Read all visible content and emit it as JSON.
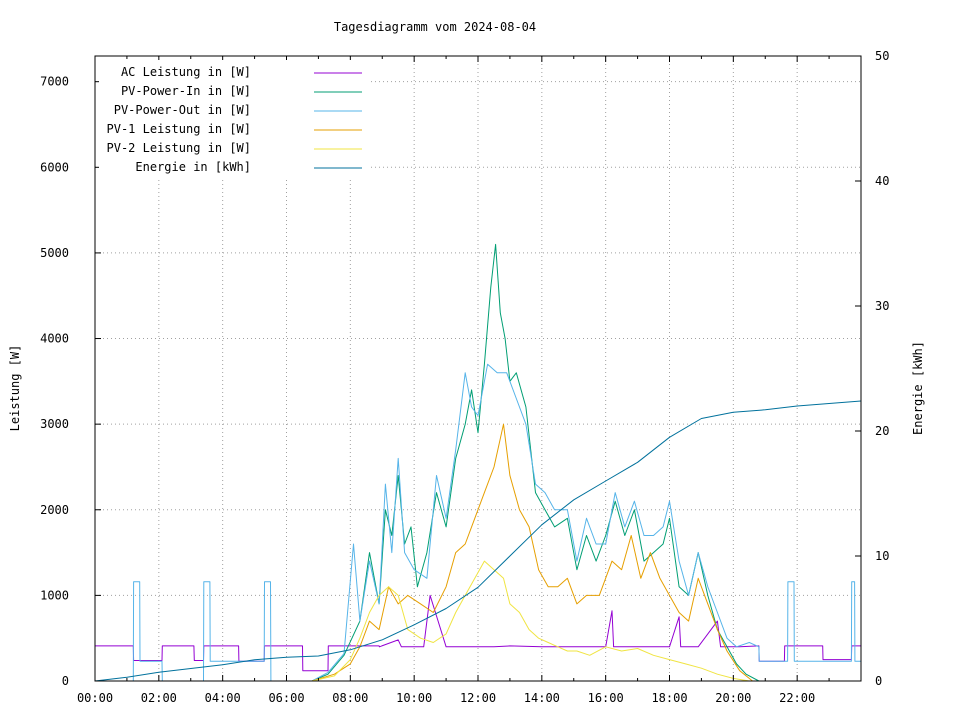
{
  "chart_data": {
    "type": "line",
    "title": "Tagesdiagramm vom 2024-08-04",
    "ylabel": "Leistung [W]",
    "y2label": "Energie [kWh]",
    "xlabel": "",
    "xlim": [
      0,
      24
    ],
    "ylim": [
      0,
      7300
    ],
    "y2lim": [
      0,
      50
    ],
    "x_ticks": [
      "00:00",
      "02:00",
      "04:00",
      "06:00",
      "08:00",
      "10:00",
      "12:00",
      "14:00",
      "16:00",
      "18:00",
      "20:00",
      "22:00"
    ],
    "y_ticks": [
      0,
      1000,
      2000,
      3000,
      4000,
      5000,
      6000,
      7000
    ],
    "y2_ticks": [
      0,
      10,
      20,
      30,
      40,
      50
    ],
    "grid": true,
    "legend_position": "top-left",
    "series": [
      {
        "name": "AC Leistung in [W]",
        "color": "#9400d3",
        "axis": "y",
        "x": [
          0,
          1.2,
          1.21,
          2.1,
          2.11,
          3.1,
          3.11,
          3.4,
          3.41,
          4.5,
          4.51,
          5.3,
          5.31,
          6.5,
          6.51,
          7.3,
          7.31,
          8.9,
          8.91,
          9.5,
          9.6,
          10.3,
          10.5,
          11.0,
          12.0,
          12.5,
          13.0,
          14.0,
          15.0,
          16.0,
          16.2,
          16.25,
          17.0,
          18.0,
          18.3,
          18.35,
          18.9,
          19.5,
          19.6,
          20.2,
          20.8,
          20.81,
          21.6,
          21.61,
          22.8,
          22.81,
          23.7,
          23.71,
          24
        ],
        "values": [
          410,
          410,
          240,
          240,
          410,
          410,
          240,
          240,
          410,
          410,
          230,
          230,
          410,
          410,
          120,
          120,
          410,
          410,
          400,
          480,
          400,
          400,
          1000,
          400,
          400,
          400,
          410,
          400,
          400,
          400,
          820,
          400,
          400,
          400,
          750,
          400,
          400,
          700,
          400,
          400,
          410,
          230,
          230,
          410,
          410,
          250,
          250,
          410,
          410
        ]
      },
      {
        "name": "PV-Power-In in [W]",
        "color": "#009e73",
        "axis": "y",
        "x": [
          6.8,
          7.3,
          7.8,
          8.3,
          8.6,
          8.9,
          9.1,
          9.3,
          9.5,
          9.7,
          9.9,
          10.1,
          10.4,
          10.7,
          11.0,
          11.3,
          11.6,
          11.8,
          12.0,
          12.2,
          12.4,
          12.55,
          12.7,
          12.85,
          13.0,
          13.2,
          13.5,
          13.8,
          14.1,
          14.4,
          14.8,
          15.1,
          15.4,
          15.7,
          16.0,
          16.3,
          16.6,
          16.9,
          17.2,
          17.5,
          17.8,
          18.0,
          18.3,
          18.6,
          18.9,
          19.2,
          19.5,
          19.8,
          20.1,
          20.4,
          20.8
        ],
        "values": [
          0,
          80,
          300,
          700,
          1500,
          900,
          2000,
          1700,
          2400,
          1600,
          1800,
          1100,
          1500,
          2200,
          1800,
          2600,
          3000,
          3400,
          2900,
          3700,
          4600,
          5100,
          4300,
          4000,
          3500,
          3600,
          3200,
          2200,
          2000,
          1800,
          1900,
          1300,
          1700,
          1400,
          1700,
          2100,
          1700,
          2000,
          1400,
          1500,
          1600,
          1900,
          1100,
          1000,
          1500,
          1000,
          600,
          400,
          200,
          80,
          0
        ]
      },
      {
        "name": "PV-Power-Out in [W]",
        "color": "#56b4e9",
        "axis": "y",
        "x": [
          0,
          1.2,
          1.21,
          1.4,
          1.41,
          2.1,
          2.11,
          3.4,
          3.41,
          3.6,
          3.61,
          5.3,
          5.31,
          5.5,
          5.51,
          6.8,
          7.3,
          7.8,
          8.1,
          8.3,
          8.6,
          8.9,
          9.1,
          9.3,
          9.5,
          9.7,
          10.0,
          10.4,
          10.7,
          11.0,
          11.3,
          11.6,
          11.8,
          12.0,
          12.3,
          12.6,
          12.9,
          13.2,
          13.5,
          13.8,
          14.1,
          14.4,
          14.8,
          15.1,
          15.4,
          15.7,
          16.0,
          16.3,
          16.6,
          16.9,
          17.2,
          17.5,
          17.8,
          18.0,
          18.3,
          18.6,
          18.9,
          19.2,
          19.5,
          19.8,
          20.1,
          20.5,
          20.8,
          20.81,
          21.7,
          21.71,
          21.9,
          21.91,
          22.8,
          22.81,
          23.7,
          23.71,
          23.8,
          23.81,
          24
        ],
        "values": [
          0,
          0,
          1160,
          1160,
          230,
          230,
          0,
          0,
          1160,
          1160,
          230,
          230,
          1160,
          1160,
          0,
          0,
          100,
          320,
          1600,
          700,
          1400,
          900,
          2300,
          1500,
          2600,
          1500,
          1300,
          1200,
          2400,
          1900,
          2700,
          3600,
          3200,
          3100,
          3700,
          3600,
          3600,
          3300,
          3000,
          2300,
          2200,
          2000,
          2000,
          1400,
          1900,
          1600,
          1600,
          2200,
          1800,
          2100,
          1700,
          1700,
          1800,
          2100,
          1400,
          1000,
          1500,
          1100,
          800,
          500,
          400,
          450,
          400,
          230,
          230,
          1160,
          1160,
          230,
          230,
          230,
          230,
          1160,
          1160,
          230,
          230
        ]
      },
      {
        "name": "PV-1 Leistung in [W]",
        "color": "#e69f00",
        "axis": "y",
        "x": [
          6.8,
          7.5,
          8.0,
          8.3,
          8.6,
          8.9,
          9.2,
          9.5,
          9.8,
          10.2,
          10.6,
          11.0,
          11.3,
          11.6,
          11.9,
          12.2,
          12.5,
          12.8,
          13.0,
          13.3,
          13.6,
          13.9,
          14.2,
          14.5,
          14.8,
          15.1,
          15.4,
          15.8,
          16.2,
          16.5,
          16.8,
          17.1,
          17.4,
          17.7,
          18.0,
          18.3,
          18.6,
          18.9,
          19.2,
          19.5,
          19.8,
          20.2,
          20.6
        ],
        "values": [
          0,
          80,
          200,
          400,
          700,
          600,
          1100,
          900,
          1000,
          900,
          800,
          1100,
          1500,
          1600,
          1900,
          2200,
          2500,
          3000,
          2400,
          2000,
          1800,
          1300,
          1100,
          1100,
          1200,
          900,
          1000,
          1000,
          1400,
          1300,
          1700,
          1200,
          1500,
          1200,
          1000,
          800,
          700,
          1200,
          900,
          600,
          350,
          120,
          0
        ]
      },
      {
        "name": "PV-2 Leistung in [W]",
        "color": "#f0e442",
        "axis": "y",
        "x": [
          6.8,
          7.5,
          8.0,
          8.3,
          8.6,
          8.9,
          9.2,
          9.5,
          9.8,
          10.2,
          10.6,
          11.0,
          11.3,
          11.6,
          11.9,
          12.2,
          12.5,
          12.8,
          13.0,
          13.3,
          13.6,
          13.9,
          14.2,
          14.5,
          14.8,
          15.1,
          15.5,
          16.0,
          16.5,
          17.0,
          17.5,
          18.0,
          18.5,
          19.0,
          19.5,
          20.0,
          20.5
        ],
        "values": [
          0,
          60,
          250,
          500,
          800,
          1000,
          1100,
          1000,
          600,
          500,
          450,
          550,
          800,
          1000,
          1200,
          1400,
          1300,
          1200,
          900,
          800,
          600,
          500,
          450,
          400,
          350,
          350,
          300,
          400,
          350,
          380,
          300,
          250,
          200,
          150,
          80,
          30,
          0
        ]
      },
      {
        "name": "Energie in [kWh]",
        "color": "#00719c",
        "axis": "y2",
        "x": [
          0,
          1,
          2,
          3,
          4,
          5,
          6,
          7,
          8,
          9,
          10,
          11,
          12,
          13,
          14,
          15,
          16,
          17,
          18,
          19,
          20,
          21,
          22,
          23,
          24
        ],
        "values": [
          0,
          0.3,
          0.7,
          1.0,
          1.3,
          1.7,
          1.9,
          2.0,
          2.5,
          3.3,
          4.5,
          5.8,
          7.5,
          10.0,
          12.5,
          14.5,
          16.0,
          17.5,
          19.5,
          21.0,
          21.5,
          21.7,
          22.0,
          22.2,
          22.4
        ]
      }
    ]
  }
}
